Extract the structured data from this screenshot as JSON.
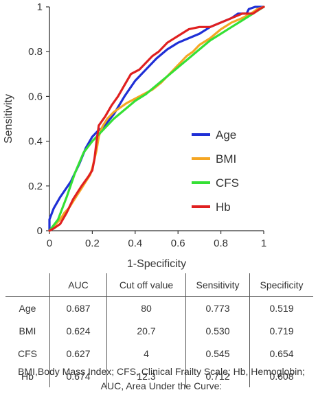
{
  "chart_data": {
    "type": "line",
    "title": "",
    "xlabel": "1-Specificity",
    "ylabel": "Sensitivity",
    "xlim": [
      0,
      1
    ],
    "ylim": [
      0,
      1
    ],
    "x_ticks": [
      "0",
      "0.2",
      "0.4",
      "0.6",
      "0.8",
      "1"
    ],
    "y_ticks": [
      "0",
      "0.2",
      "0.4",
      "0.6",
      "0.8",
      "1"
    ],
    "grid": false,
    "legend_position": "right-middle",
    "series": [
      {
        "name": "Age",
        "color": "#1f2fd6",
        "points": [
          [
            0,
            0
          ],
          [
            0,
            0.05
          ],
          [
            0.02,
            0.1
          ],
          [
            0.05,
            0.15
          ],
          [
            0.1,
            0.22
          ],
          [
            0.14,
            0.3
          ],
          [
            0.17,
            0.37
          ],
          [
            0.2,
            0.42
          ],
          [
            0.23,
            0.45
          ],
          [
            0.25,
            0.46
          ],
          [
            0.3,
            0.52
          ],
          [
            0.35,
            0.6
          ],
          [
            0.4,
            0.67
          ],
          [
            0.45,
            0.72
          ],
          [
            0.5,
            0.77
          ],
          [
            0.55,
            0.81
          ],
          [
            0.6,
            0.84
          ],
          [
            0.65,
            0.86
          ],
          [
            0.7,
            0.88
          ],
          [
            0.75,
            0.91
          ],
          [
            0.8,
            0.93
          ],
          [
            0.85,
            0.95
          ],
          [
            0.88,
            0.97
          ],
          [
            0.92,
            0.97
          ],
          [
            0.93,
            0.99
          ],
          [
            0.96,
            1
          ],
          [
            1,
            1
          ]
        ]
      },
      {
        "name": "BMI",
        "color": "#f5a623",
        "points": [
          [
            0,
            0
          ],
          [
            0.02,
            0.02
          ],
          [
            0.05,
            0.05
          ],
          [
            0.07,
            0.08
          ],
          [
            0.09,
            0.1
          ],
          [
            0.11,
            0.13
          ],
          [
            0.13,
            0.16
          ],
          [
            0.15,
            0.19
          ],
          [
            0.17,
            0.22
          ],
          [
            0.19,
            0.25
          ],
          [
            0.2,
            0.28
          ],
          [
            0.21,
            0.32
          ],
          [
            0.22,
            0.36
          ],
          [
            0.23,
            0.42
          ],
          [
            0.24,
            0.45
          ],
          [
            0.25,
            0.47
          ],
          [
            0.27,
            0.5
          ],
          [
            0.3,
            0.53
          ],
          [
            0.33,
            0.55
          ],
          [
            0.36,
            0.57
          ],
          [
            0.4,
            0.59
          ],
          [
            0.44,
            0.61
          ],
          [
            0.48,
            0.63
          ],
          [
            0.52,
            0.66
          ],
          [
            0.56,
            0.7
          ],
          [
            0.6,
            0.74
          ],
          [
            0.64,
            0.78
          ],
          [
            0.67,
            0.8
          ],
          [
            0.7,
            0.83
          ],
          [
            0.75,
            0.86
          ],
          [
            0.8,
            0.9
          ],
          [
            0.85,
            0.93
          ],
          [
            0.9,
            0.95
          ],
          [
            0.94,
            0.97
          ],
          [
            0.97,
            0.99
          ],
          [
            1,
            1
          ]
        ]
      },
      {
        "name": "CFS",
        "color": "#35e035",
        "points": [
          [
            0,
            0
          ],
          [
            0.04,
            0.05
          ],
          [
            0.08,
            0.15
          ],
          [
            0.12,
            0.26
          ],
          [
            0.16,
            0.35
          ],
          [
            0.2,
            0.4
          ],
          [
            0.25,
            0.45
          ],
          [
            0.3,
            0.5
          ],
          [
            0.35,
            0.54
          ],
          [
            0.4,
            0.58
          ],
          [
            0.45,
            0.61
          ],
          [
            0.5,
            0.65
          ],
          [
            0.55,
            0.69
          ],
          [
            0.6,
            0.73
          ],
          [
            0.65,
            0.77
          ],
          [
            0.7,
            0.81
          ],
          [
            0.75,
            0.85
          ],
          [
            0.8,
            0.88
          ],
          [
            0.85,
            0.91
          ],
          [
            0.9,
            0.94
          ],
          [
            0.95,
            0.97
          ],
          [
            1,
            1
          ]
        ]
      },
      {
        "name": "Hb",
        "color": "#e02020",
        "points": [
          [
            0,
            0
          ],
          [
            0.02,
            0.01
          ],
          [
            0.05,
            0.03
          ],
          [
            0.08,
            0.08
          ],
          [
            0.11,
            0.14
          ],
          [
            0.15,
            0.2
          ],
          [
            0.18,
            0.24
          ],
          [
            0.2,
            0.27
          ],
          [
            0.21,
            0.32
          ],
          [
            0.22,
            0.4
          ],
          [
            0.23,
            0.47
          ],
          [
            0.26,
            0.51
          ],
          [
            0.29,
            0.56
          ],
          [
            0.32,
            0.6
          ],
          [
            0.35,
            0.65
          ],
          [
            0.38,
            0.7
          ],
          [
            0.42,
            0.72
          ],
          [
            0.45,
            0.75
          ],
          [
            0.48,
            0.78
          ],
          [
            0.51,
            0.8
          ],
          [
            0.55,
            0.84
          ],
          [
            0.6,
            0.87
          ],
          [
            0.65,
            0.9
          ],
          [
            0.7,
            0.91
          ],
          [
            0.75,
            0.91
          ],
          [
            0.8,
            0.93
          ],
          [
            0.85,
            0.95
          ],
          [
            0.9,
            0.97
          ],
          [
            0.95,
            0.97
          ],
          [
            0.98,
            0.99
          ],
          [
            1,
            1
          ]
        ]
      }
    ]
  },
  "table": {
    "headers": [
      "",
      "AUC",
      "Cut off value",
      "Sensitivity",
      "Specificity"
    ],
    "rows": [
      [
        "Age",
        "0.687",
        "80",
        "0.773",
        "0.519"
      ],
      [
        "BMI",
        "0.624",
        "20.7",
        "0.530",
        "0.719"
      ],
      [
        "CFS",
        "0.627",
        "4",
        "0.545",
        "0.654"
      ],
      [
        "Hb",
        "0.674",
        "12.3",
        "0.712",
        "0.608"
      ]
    ]
  },
  "footnote": "BMI,Body Mass Index; CFS, Clinical Frailty Scale; Hb, Hemoglobin; AUC, Area Under the Curve:"
}
